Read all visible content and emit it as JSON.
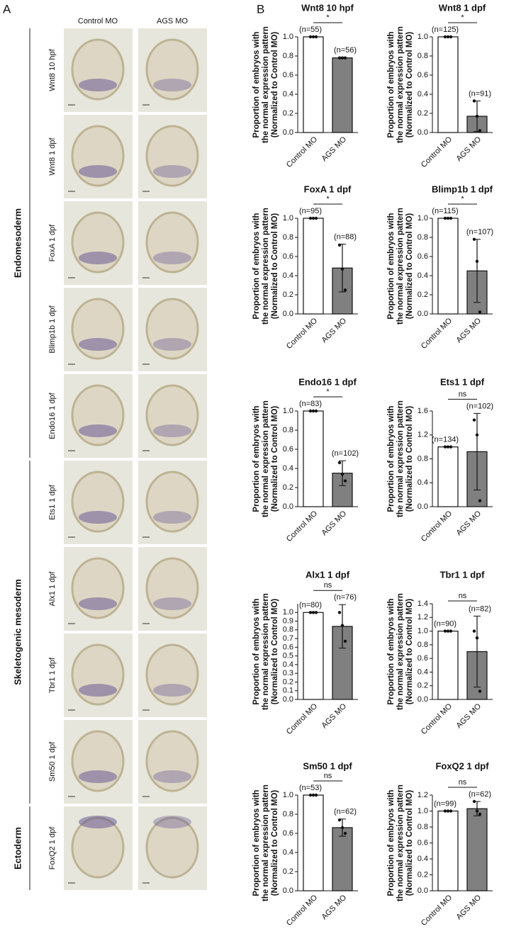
{
  "panel_a": {
    "label": "A",
    "columns": [
      "Control MO",
      "AGS MO"
    ],
    "rows": [
      "Wnt8 10 hpf",
      "Wnt8 1 dpf",
      "FoxA 1 dpf",
      "Blimp1b 1 dpf",
      "Endo16 1 dpf",
      "Ets1 1 dpf",
      "Alx1 1 dpf",
      "Tbr1 1 dpf",
      "Sm50 1 dpf",
      "FoxQ2 1 dpf"
    ],
    "groups": [
      {
        "name": "Endomesoderm",
        "rows": [
          0,
          4
        ]
      },
      {
        "name": "Skeletogenic mesoderm",
        "rows": [
          5,
          8
        ]
      },
      {
        "name": "Ectoderm",
        "rows": [
          9,
          9
        ]
      }
    ]
  },
  "panel_b_label": "B",
  "chart_data": [
    {
      "type": "bar",
      "title": "Wnt8 10 hpf",
      "ylabel": [
        "Proportion of embryos with",
        "the normal expression pattern",
        "(Normalized to Control MO)"
      ],
      "categories": [
        "Control MO",
        "AGS MO"
      ],
      "values": [
        1,
        0.78
      ],
      "errors": [
        0,
        0.005
      ],
      "points": [
        [
          1,
          1,
          1
        ],
        [
          0.78,
          0.78,
          0.78
        ]
      ],
      "n_labels": [
        "(n=55)",
        "(n=56)"
      ],
      "significance": "*",
      "colors": [
        "#ffffff",
        "#808080"
      ],
      "ylim": [
        0,
        1
      ],
      "yticks": [
        {
          "value": 0,
          "label": "0.0"
        },
        0.2,
        0.4,
        0.6,
        0.8,
        {
          "value": 1,
          "label": "1.0"
        }
      ]
    },
    {
      "type": "bar",
      "title": "Wnt8 1 dpf",
      "ylabel": [
        "Proportion of embryos with",
        "the normal expression pattern",
        "(Normalized to Control MO)"
      ],
      "categories": [
        "Control MO",
        "AGS MO"
      ],
      "values": [
        1,
        0.17
      ],
      "errors": [
        0,
        0.16
      ],
      "points": [
        [
          1,
          1,
          1
        ],
        [
          0.33,
          0.17,
          0.02
        ]
      ],
      "n_labels": [
        "(n=125)",
        "(n=91)"
      ],
      "significance": "*",
      "colors": [
        "#ffffff",
        "#808080"
      ],
      "ylim": [
        0,
        1
      ],
      "yticks": [
        {
          "value": 0,
          "label": "0.0"
        },
        0.2,
        0.4,
        0.6,
        0.8,
        {
          "value": 1,
          "label": "1.0"
        }
      ]
    },
    {
      "type": "bar",
      "title": "FoxA 1 dpf",
      "ylabel": [
        "Proportion of embryos with",
        "the normal expression pattern",
        "(Normalized to Control MO)"
      ],
      "categories": [
        "Control MO",
        "AGS MO"
      ],
      "values": [
        1,
        0.48
      ],
      "errors": [
        0,
        0.25
      ],
      "points": [
        [
          1,
          1,
          1
        ],
        [
          0.72,
          0.47,
          0.25
        ]
      ],
      "n_labels": [
        "(n=95)",
        "(n=88)"
      ],
      "significance": "*",
      "colors": [
        "#ffffff",
        "#808080"
      ],
      "ylim": [
        0,
        1
      ],
      "yticks": [
        {
          "value": 0,
          "label": "0.0"
        },
        0.2,
        0.4,
        0.6,
        0.8,
        {
          "value": 1,
          "label": "1.0"
        }
      ]
    },
    {
      "type": "bar",
      "title": "Blimp1b 1 dpf",
      "ylabel": [
        "Proportion of embryos with",
        "the normal expression pattern",
        "(Normalized to Control MO)"
      ],
      "categories": [
        "Control MO",
        "AGS MO"
      ],
      "values": [
        1,
        0.45
      ],
      "errors": [
        0,
        0.33
      ],
      "points": [
        [
          1,
          1,
          1
        ],
        [
          0.78,
          0.55,
          0.02
        ]
      ],
      "n_labels": [
        "(n=115)",
        "(n=107)"
      ],
      "significance": "*",
      "colors": [
        "#ffffff",
        "#808080"
      ],
      "ylim": [
        0,
        1
      ],
      "yticks": [
        {
          "value": 0,
          "label": "0.0"
        },
        0.2,
        0.4,
        0.6,
        0.8,
        {
          "value": 1,
          "label": "1.0"
        }
      ]
    },
    {
      "type": "bar",
      "title": "Endo16 1 dpf",
      "ylabel": [
        "Proportion of embryos with",
        "the normal expression pattern",
        "(Normalized to Control MO)"
      ],
      "categories": [
        "Control MO",
        "AGS MO"
      ],
      "values": [
        1,
        0.35
      ],
      "errors": [
        0,
        0.13
      ],
      "points": [
        [
          1,
          1,
          1
        ],
        [
          0.46,
          0.34,
          0.27
        ]
      ],
      "n_labels": [
        "(n=83)",
        "(n=102)"
      ],
      "significance": "*",
      "colors": [
        "#ffffff",
        "#808080"
      ],
      "ylim": [
        0,
        1
      ],
      "yticks": [
        {
          "value": 0,
          "label": "0.0"
        },
        0.2,
        0.4,
        0.6,
        0.8,
        {
          "value": 1,
          "label": "1.0"
        }
      ]
    },
    {
      "type": "bar",
      "title": "Ets1 1 dpf",
      "ylabel": [
        "Proportion of embryos with",
        "the normal expression pattern",
        "(Normalized to Control MO)"
      ],
      "categories": [
        "Control MO",
        "AGS MO"
      ],
      "values": [
        1,
        0.92
      ],
      "errors": [
        0,
        0.64
      ],
      "points": [
        [
          1,
          1,
          1
        ],
        [
          1.45,
          1.2,
          0.1
        ]
      ],
      "n_labels": [
        "(n=134)",
        "(n=102)"
      ],
      "significance": "ns",
      "colors": [
        "#ffffff",
        "#808080"
      ],
      "ylim": [
        0,
        1.6
      ],
      "yticks": [
        {
          "value": 0,
          "label": "0.0"
        },
        0.4,
        0.8,
        1.2,
        1.6
      ]
    },
    {
      "type": "bar",
      "title": "Alx1 1 dpf",
      "ylabel": [
        "Proportion of embryos with",
        "the normal expression pattern",
        "(Normalized to Control MO)"
      ],
      "categories": [
        "Control MO",
        "AGS MO"
      ],
      "values": [
        1,
        0.84
      ],
      "errors": [
        0,
        0.25
      ],
      "points": [
        [
          1,
          1,
          1
        ],
        [
          1,
          0.85,
          0.67
        ]
      ],
      "n_labels": [
        "(n=80)",
        "(n=76)"
      ],
      "significance": "ns",
      "colors": [
        "#ffffff",
        "#808080"
      ],
      "ylim": [
        0,
        1.1
      ],
      "yticks": [
        {
          "value": 0,
          "label": "0.0"
        },
        0.1,
        0.2,
        0.3,
        0.4,
        0.5,
        0.6,
        0.7,
        0.8,
        0.9,
        {
          "value": 1,
          "label": "1.0"
        }
      ]
    },
    {
      "type": "bar",
      "title": "Tbr1 1 dpf",
      "ylabel": [
        "Proportion of embryos with",
        "the normal expression pattern",
        "(Normalized to Control MO)"
      ],
      "categories": [
        "Control MO",
        "AGS MO"
      ],
      "values": [
        1,
        0.7
      ],
      "errors": [
        0,
        0.52
      ],
      "points": [
        [
          1,
          1,
          1
        ],
        [
          1,
          0.9,
          0.12
        ]
      ],
      "n_labels": [
        "(n=90)",
        "(n=82)"
      ],
      "significance": "ns",
      "colors": [
        "#ffffff",
        "#808080"
      ],
      "ylim": [
        0,
        1.4
      ],
      "yticks": [
        {
          "value": 0,
          "label": "0.0"
        },
        0.2,
        0.4,
        0.6,
        0.8,
        {
          "value": 1,
          "label": "1.0"
        },
        1.2,
        1.4
      ]
    },
    {
      "type": "bar",
      "title": "Sm50 1 dpf",
      "ylabel": [
        "Proportion of embryos with",
        "the normal expression pattern",
        "(Normalized to Control MO)"
      ],
      "categories": [
        "Control MO",
        "AGS MO"
      ],
      "values": [
        1,
        0.66
      ],
      "errors": [
        0,
        0.09
      ],
      "points": [
        [
          1,
          1,
          1
        ],
        [
          0.74,
          0.66,
          0.6
        ]
      ],
      "n_labels": [
        "(n=53)",
        "(n=62)"
      ],
      "significance": "ns",
      "colors": [
        "#ffffff",
        "#808080"
      ],
      "ylim": [
        0,
        1
      ],
      "yticks": [
        {
          "value": 0,
          "label": "0.0"
        },
        0.2,
        0.4,
        0.6,
        0.8,
        {
          "value": 1,
          "label": "1.0"
        }
      ]
    },
    {
      "type": "bar",
      "title": "FoxQ2 1 dpf",
      "ylabel": [
        "Proportion of embryos with",
        "the normal expression pattern",
        "(Normalized to Control MO)"
      ],
      "categories": [
        "Control MO",
        "AGS MO"
      ],
      "values": [
        1,
        1.03
      ],
      "errors": [
        0,
        0.09
      ],
      "points": [
        [
          1,
          1,
          1
        ],
        [
          1.12,
          1,
          0.96
        ]
      ],
      "n_labels": [
        "(n=99)",
        "(n=62)"
      ],
      "significance": "ns",
      "colors": [
        "#ffffff",
        "#808080"
      ],
      "ylim": [
        0,
        1.2
      ],
      "yticks": [
        {
          "value": 0,
          "label": "0.0"
        },
        0.2,
        0.4,
        0.6,
        0.8,
        {
          "value": 1,
          "label": "1.0"
        },
        1.2
      ]
    }
  ]
}
